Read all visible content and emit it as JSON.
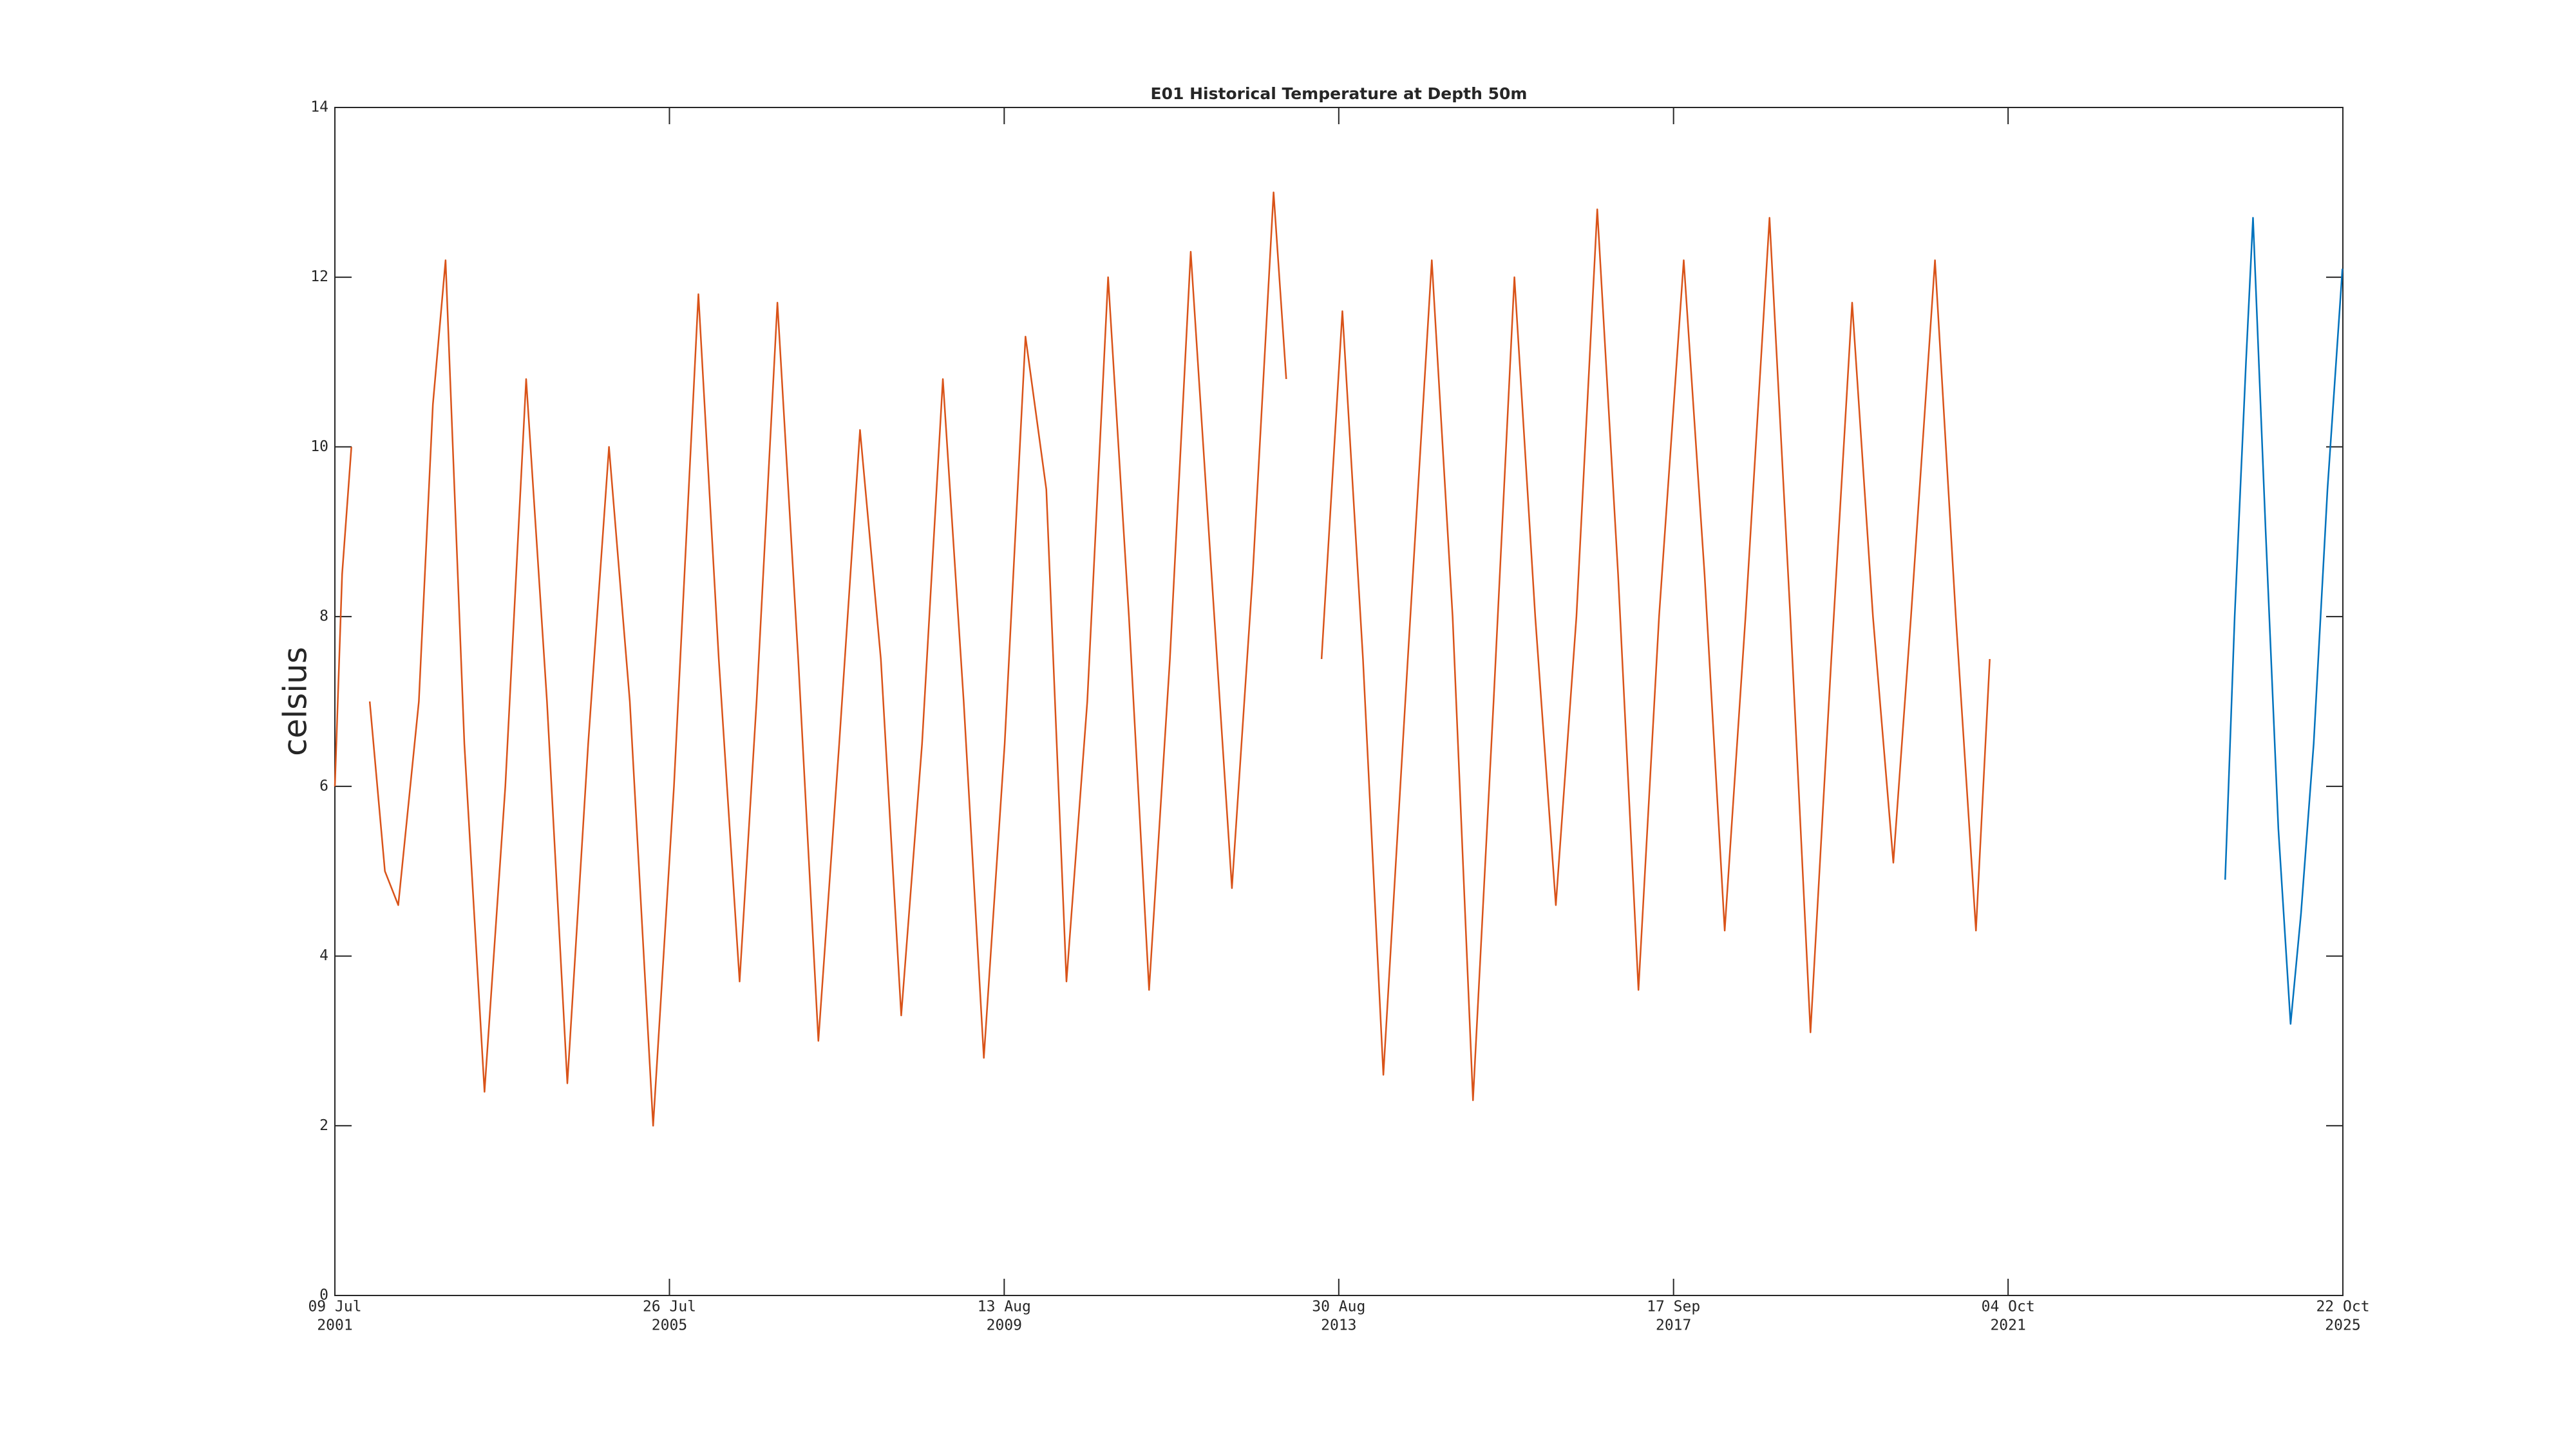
{
  "chart_data": {
    "type": "line",
    "title": "E01 Historical Temperature at Depth 50m",
    "y_label": "celsius",
    "xlim": [
      "2001-07-09",
      "2025-10-22"
    ],
    "xticks": [
      {
        "value": "2001-07-09",
        "label": [
          "09 Jul",
          "2001"
        ]
      },
      {
        "value": "2005-07-26",
        "label": [
          "26 Jul",
          "2005"
        ]
      },
      {
        "value": "2009-08-13",
        "label": [
          "13 Aug",
          "2009"
        ]
      },
      {
        "value": "2013-08-30",
        "label": [
          "30 Aug",
          "2013"
        ]
      },
      {
        "value": "2017-09-17",
        "label": [
          "17 Sep",
          "2017"
        ]
      },
      {
        "value": "2021-10-04",
        "label": [
          "04 Oct",
          "2021"
        ]
      },
      {
        "value": "2025-10-22",
        "label": [
          "22 Oct",
          "2025"
        ]
      }
    ],
    "ylim": [
      0,
      14
    ],
    "yticks": [
      0,
      2,
      4,
      6,
      8,
      10,
      12,
      14
    ],
    "grid": false,
    "series": [
      {
        "color": "#d95319",
        "x": [
          "2001-07-09",
          "2001-08-10",
          "2001-09-20",
          "2001-11-01",
          "2001-12-10",
          "2002-02-15",
          "2002-04-15",
          "2002-07-15",
          "2002-09-15",
          "2002-11-10",
          "2003-02-01",
          "2003-05-01",
          "2003-08-01",
          "2003-11-01",
          "2004-02-01",
          "2004-05-01",
          "2004-08-01",
          "2004-11-01",
          "2005-02-01",
          "2005-05-15",
          "2005-08-15",
          "2005-12-01",
          "2006-03-01",
          "2006-06-01",
          "2006-08-15",
          "2006-11-15",
          "2007-02-15",
          "2007-05-15",
          "2007-08-15",
          "2007-11-15",
          "2008-02-15",
          "2008-05-15",
          "2008-08-15",
          "2008-11-15",
          "2009-02-15",
          "2009-05-15",
          "2009-08-15",
          "2009-11-15",
          "2010-02-15",
          "2010-05-15",
          "2010-08-15",
          "2010-11-15",
          "2011-02-15",
          "2011-05-15",
          "2011-08-15",
          "2011-11-15",
          "2012-02-15",
          "2012-05-15",
          "2012-08-15",
          "2012-11-15",
          "2013-01-10",
          "2013-03-15",
          "2013-06-15",
          "2013-09-15",
          "2013-12-15",
          "2014-03-15",
          "2014-07-01",
          "2014-10-15",
          "2015-01-15",
          "2015-04-15",
          "2015-07-15",
          "2015-10-15",
          "2016-01-15",
          "2016-04-15",
          "2016-07-15",
          "2016-10-15",
          "2017-01-15",
          "2017-04-15",
          "2017-07-15",
          "2017-11-01",
          "2018-02-01",
          "2018-05-01",
          "2018-08-01",
          "2018-11-15",
          "2019-02-15",
          "2019-05-15",
          "2019-08-15",
          "2019-11-15",
          "2020-02-15",
          "2020-05-15",
          "2020-08-01",
          "2020-11-15",
          "2021-02-15",
          "2021-05-15",
          "2021-07-15"
        ],
        "values": [
          6.0,
          8.5,
          10.0,
          null,
          7.0,
          5.0,
          4.6,
          7.0,
          10.5,
          12.2,
          6.5,
          2.4,
          6.0,
          10.8,
          7.0,
          2.5,
          6.5,
          10.0,
          7.0,
          2.0,
          6.0,
          11.8,
          7.5,
          3.7,
          7.0,
          11.7,
          7.5,
          3.0,
          6.5,
          10.2,
          7.5,
          3.3,
          6.5,
          10.8,
          7.0,
          2.8,
          6.5,
          11.3,
          9.5,
          3.7,
          7.0,
          12.0,
          8.0,
          3.6,
          7.5,
          12.3,
          8.5,
          4.8,
          8.5,
          13.0,
          10.8,
          null,
          7.5,
          11.6,
          7.5,
          2.6,
          7.5,
          12.2,
          8.0,
          2.3,
          7.0,
          12.0,
          8.0,
          4.6,
          8.0,
          12.8,
          8.5,
          3.6,
          8.0,
          12.2,
          8.5,
          4.3,
          8.0,
          12.7,
          8.0,
          3.1,
          7.5,
          11.7,
          8.0,
          5.1,
          8.0,
          12.2,
          8.0,
          4.3,
          7.5
        ]
      },
      {
        "color": "#0072bd",
        "x": [
          "2024-05-20",
          "2024-07-01",
          "2024-08-20",
          "2024-09-20",
          "2024-11-15",
          "2025-01-10",
          "2025-03-05",
          "2025-04-20",
          "2025-06-15",
          "2025-08-15",
          "2025-10-20"
        ],
        "values": [
          4.9,
          8.0,
          11.0,
          12.7,
          9.0,
          5.5,
          3.2,
          4.5,
          6.5,
          9.5,
          12.1
        ]
      }
    ]
  }
}
